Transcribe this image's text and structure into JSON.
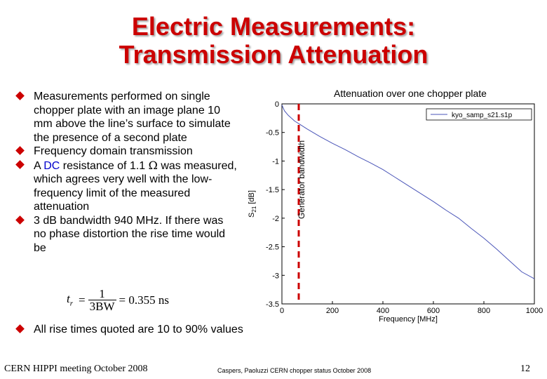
{
  "slide": {
    "title_line1": "Electric Measurements:",
    "title_line2": "Transmission Attenuation",
    "bullets": [
      "Measurements performed on single chopper plate with an image plane 10 mm above the line’s surface to simulate the presence of a second plate",
      "Frequency domain transmission",
      "3 dB bandwidth 940 MHz. If there was no phase distortion the rise time would be"
    ],
    "dc_bullet": {
      "prefix": "A ",
      "highlight": "DC",
      "middle": " resistance of 1.1 ",
      "omega": "Ω",
      "suffix": " was measured, which agrees very well with the low-frequency limit of the measured attenuation"
    },
    "formula": {
      "lhs": "t",
      "sub": "r",
      "eq": "=",
      "num": "1",
      "den": "3BW",
      "rhs": "= 0.355 ns"
    },
    "bottom_bullet": "All rise times quoted are 10 to 90% values",
    "footer_left": "CERN HIPPI meeting October 2008",
    "footer_mid": "Caspers, Paoluzzi CERN chopper status October 2008",
    "page_number": "12",
    "colors": {
      "title": "#cc0000",
      "bullet": "#cc0000",
      "dc_highlight": "#0000cc",
      "curve": "#4a55b8",
      "marker": "#cc0000"
    }
  },
  "chart_data": {
    "type": "line",
    "title": "Attenuation over one chopper plate",
    "xlabel": "Frequency [MHz]",
    "ylabel_main": "S",
    "ylabel_sub": "21",
    "ylabel_unit": " [dB]",
    "xlim": [
      0,
      1000
    ],
    "ylim": [
      -3.5,
      0
    ],
    "xticks": [
      0,
      200,
      400,
      600,
      800,
      1000
    ],
    "yticks": [
      0,
      -0.5,
      -1,
      -1.5,
      -2,
      -2.5,
      -3,
      -3.5
    ],
    "ytick_labels": [
      "0",
      "-0.5",
      "-1",
      "-1.5",
      "-2",
      "-2.5",
      "-3",
      "-3.5"
    ],
    "legend_label": "kyo_samp_s21.s1p",
    "legend_position": "top-right",
    "marker_label": "Generator bandwidth",
    "series": [
      {
        "name": "kyo_samp_s21.s1p",
        "x": [
          0,
          10,
          25,
          50,
          75,
          100,
          150,
          200,
          250,
          300,
          350,
          400,
          450,
          500,
          550,
          600,
          650,
          700,
          750,
          800,
          850,
          900,
          950,
          1000
        ],
        "y": [
          -0.02,
          -0.12,
          -0.2,
          -0.3,
          -0.37,
          -0.44,
          -0.57,
          -0.69,
          -0.8,
          -0.92,
          -1.03,
          -1.15,
          -1.29,
          -1.43,
          -1.57,
          -1.71,
          -1.86,
          -2.0,
          -2.18,
          -2.35,
          -2.54,
          -2.74,
          -2.94,
          -3.06
        ]
      }
    ]
  }
}
